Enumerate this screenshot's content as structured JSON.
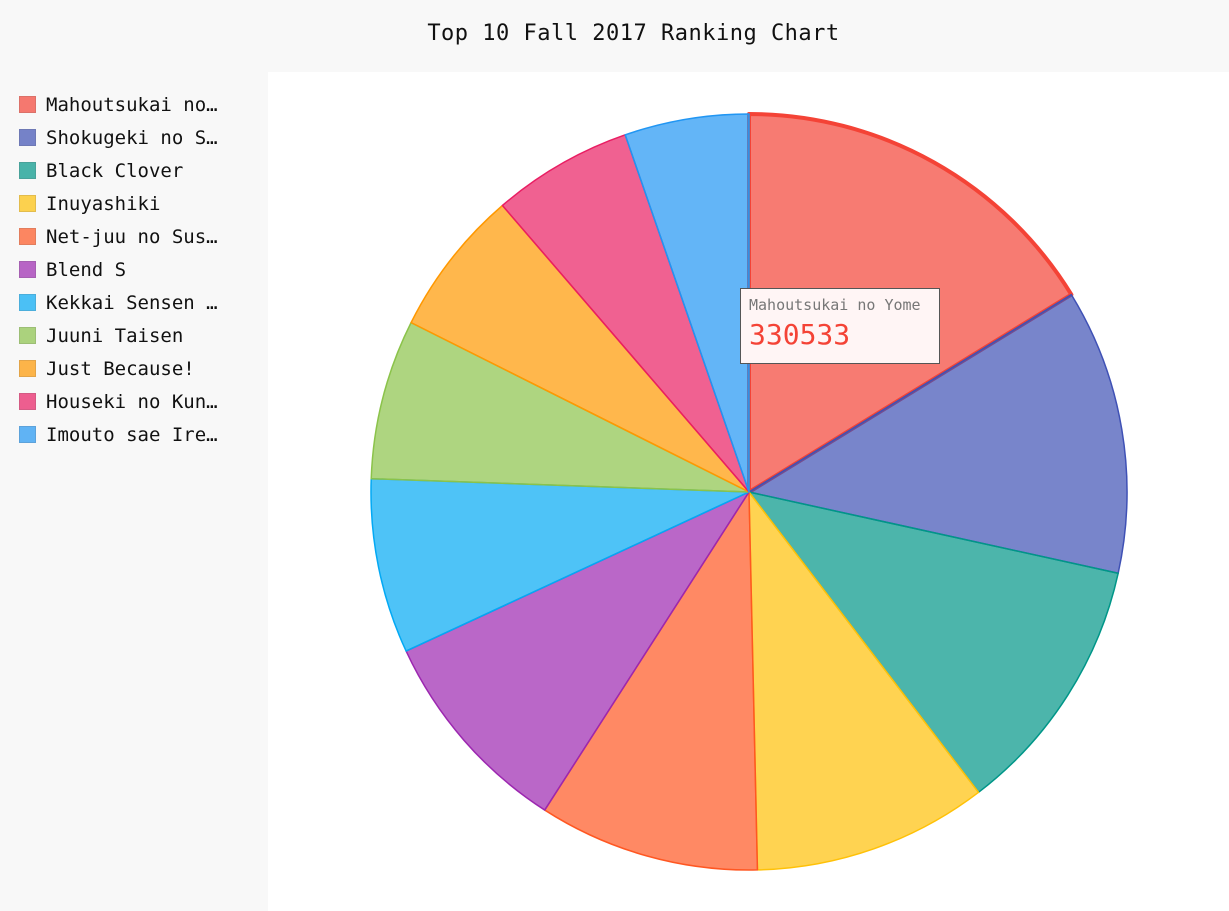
{
  "chart_data": {
    "type": "pie",
    "title": "Top 10 Fall 2017 Ranking Chart",
    "legend_position": "left",
    "slices": [
      {
        "name": "Mahoutsukai no Yome",
        "legend_label": "Mahoutsukai no…",
        "value": 330533,
        "color": "#f44336"
      },
      {
        "name": "Shokugeki no Souma: San no Sara",
        "legend_label": "Shokugeki no S…",
        "value": 248000,
        "color": "#3f51b5"
      },
      {
        "name": "Black Clover",
        "legend_label": "Black Clover",
        "value": 227000,
        "color": "#009688"
      },
      {
        "name": "Inuyashiki",
        "legend_label": "Inuyashiki",
        "value": 204000,
        "color": "#ffc107"
      },
      {
        "name": "Net-juu no Susume",
        "legend_label": "Net-juu no Sus…",
        "value": 192000,
        "color": "#ff5722"
      },
      {
        "name": "Blend S",
        "legend_label": "Blend S",
        "value": 183000,
        "color": "#9c27b0"
      },
      {
        "name": "Kekkai Sensen & Beyond",
        "legend_label": "Kekkai Sensen …",
        "value": 152000,
        "color": "#03a9f4"
      },
      {
        "name": "Juuni Taisen",
        "legend_label": "Juuni Taisen",
        "value": 139000,
        "color": "#8bc34a"
      },
      {
        "name": "Just Because!",
        "legend_label": "Just Because!",
        "value": 128000,
        "color": "#ff9800"
      },
      {
        "name": "Houseki no Kuni",
        "legend_label": "Houseki no Kun…",
        "value": 122000,
        "color": "#e91e63"
      },
      {
        "name": "Imouto sae Ireba Ii.",
        "legend_label": "Imouto sae Ire…",
        "value": 108000,
        "color": "#2196f3"
      }
    ],
    "highlighted_index": 0
  },
  "tooltip": {
    "label": "Mahoutsukai no Yome",
    "value": "330533"
  }
}
